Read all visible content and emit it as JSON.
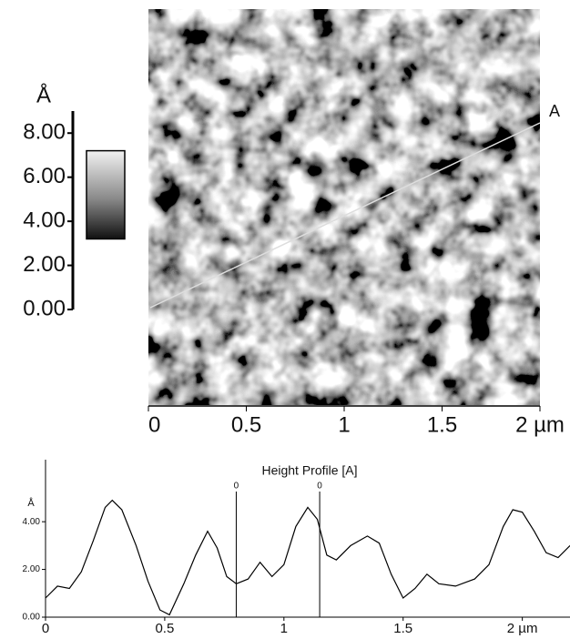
{
  "chart_data": [
    {
      "type": "image",
      "colorbar_unit": "Å",
      "colorbar_lim": [
        0,
        9
      ],
      "colorbar_ticks": [
        {
          "value": 0,
          "label": "0.00"
        },
        {
          "value": 2,
          "label": "2.00"
        },
        {
          "value": 4,
          "label": "4.00"
        },
        {
          "value": 6,
          "label": "6.00"
        },
        {
          "value": 8,
          "label": "8.00"
        }
      ],
      "color_range": [
        3.2,
        7.2
      ],
      "xlim": [
        0,
        2
      ],
      "xticks": [
        0,
        0.5,
        1,
        1.5,
        {
          "value": 2,
          "label": "2 µm"
        }
      ],
      "line_label": "A"
    },
    {
      "type": "line",
      "title": "Height Profile [A]",
      "y_unit": "Å",
      "x": [
        0,
        0.05,
        0.1,
        0.15,
        0.2,
        0.25,
        0.28,
        0.32,
        0.38,
        0.43,
        0.48,
        0.52,
        0.58,
        0.63,
        0.68,
        0.72,
        0.76,
        0.8,
        0.85,
        0.9,
        0.95,
        1.0,
        1.05,
        1.1,
        1.14,
        1.18,
        1.22,
        1.28,
        1.35,
        1.4,
        1.45,
        1.5,
        1.55,
        1.6,
        1.65,
        1.72,
        1.8,
        1.86,
        1.92,
        1.96,
        2.0,
        2.05,
        2.1,
        2.15,
        2.2
      ],
      "values": [
        0.8,
        1.3,
        1.2,
        1.9,
        3.2,
        4.6,
        4.9,
        4.5,
        3.0,
        1.5,
        0.3,
        0.1,
        1.4,
        2.6,
        3.6,
        2.9,
        1.7,
        1.4,
        1.6,
        2.3,
        1.7,
        2.2,
        3.8,
        4.6,
        4.1,
        2.6,
        2.4,
        3.0,
        3.4,
        3.1,
        1.8,
        0.8,
        1.2,
        1.8,
        1.4,
        1.3,
        1.6,
        2.2,
        3.8,
        4.5,
        4.4,
        3.6,
        2.7,
        2.5,
        3.0
      ],
      "color": "#000000",
      "xlim": [
        0,
        2.2
      ],
      "ylim": [
        0,
        6.6
      ],
      "xticks": [
        0,
        0.5,
        1,
        1.5,
        {
          "value": 2,
          "label": "2 µm"
        }
      ],
      "yticks": [
        {
          "value": 0,
          "label": "0.00"
        },
        {
          "value": 2,
          "label": "2.00"
        },
        {
          "value": 4,
          "label": "4.00"
        }
      ],
      "cursors": [
        {
          "x": 0.8,
          "label": "0"
        },
        {
          "x": 1.15,
          "label": "0"
        }
      ]
    }
  ]
}
